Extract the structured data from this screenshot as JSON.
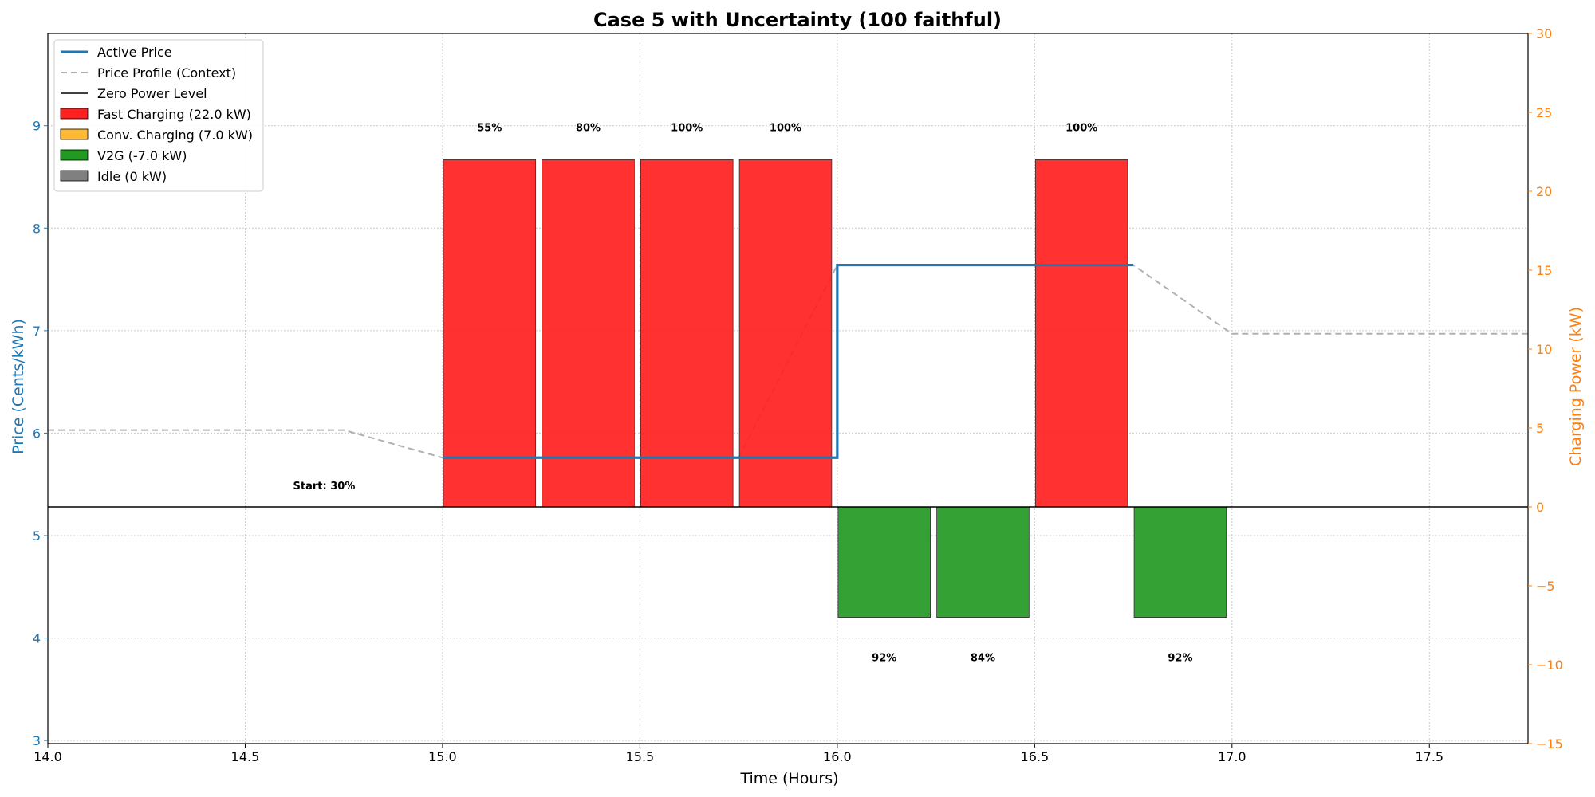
{
  "chart_data": {
    "type": "bar",
    "title": "Case 5 with Uncertainty (100 faithful)",
    "xlabel": "Time (Hours)",
    "ylabel_left": "Price (Cents/kWh)",
    "ylabel_right": "Charging Power (kW)",
    "xlim": [
      14.0,
      17.75
    ],
    "ylim_left": [
      2.97,
      9.9
    ],
    "ylim_right": [
      -15,
      30
    ],
    "xticks": [
      "14.0",
      "14.5",
      "15.0",
      "15.5",
      "16.0",
      "16.5",
      "17.0",
      "17.5"
    ],
    "xtick_values": [
      14.0,
      14.5,
      15.0,
      15.5,
      16.0,
      16.5,
      17.0,
      17.5
    ],
    "yticks_left": [
      3,
      4,
      5,
      6,
      7,
      8,
      9
    ],
    "yticks_right": [
      -15,
      -10,
      -5,
      0,
      5,
      10,
      15,
      20,
      25,
      30
    ],
    "grid": true,
    "legend_position": "top-left",
    "colors": {
      "active_price": "#1f77b4",
      "price_profile": "#b0b0b0",
      "fast": "#ff2020",
      "conv": "#ffb833",
      "v2g": "#229922",
      "idle": "#808080",
      "right_axis": "#ff7f0e"
    },
    "legend": [
      {
        "label": "Active Price",
        "kind": "line",
        "color": "#1f77b4"
      },
      {
        "label": "Price Profile (Context)",
        "kind": "dash",
        "color": "#b0b0b0"
      },
      {
        "label": "Zero Power Level",
        "kind": "line",
        "color": "#000000"
      },
      {
        "label": "Fast Charging (22.0 kW)",
        "kind": "patch",
        "color": "#ff2020"
      },
      {
        "label": "Conv. Charging (7.0 kW)",
        "kind": "patch",
        "color": "#ffb833"
      },
      {
        "label": "V2G (-7.0 kW)",
        "kind": "patch",
        "color": "#229922"
      },
      {
        "label": "Idle (0 kW)",
        "kind": "patch",
        "color": "#808080"
      }
    ],
    "active_price": {
      "x": [
        15.0,
        16.0,
        16.0,
        16.75
      ],
      "y": [
        5.76,
        5.76,
        7.64,
        7.64
      ]
    },
    "price_profile": {
      "x": [
        14.0,
        14.75,
        15.0,
        15.75,
        16.0,
        16.75,
        17.0,
        17.75
      ],
      "y": [
        6.03,
        6.03,
        5.76,
        5.76,
        7.64,
        7.64,
        6.97,
        6.97
      ]
    },
    "bars": [
      {
        "start": 15.0,
        "end": 15.25,
        "power": 22.0,
        "mode": "fast",
        "label": "55%"
      },
      {
        "start": 15.25,
        "end": 15.5,
        "power": 22.0,
        "mode": "fast",
        "label": "80%"
      },
      {
        "start": 15.5,
        "end": 15.75,
        "power": 22.0,
        "mode": "fast",
        "label": "100%"
      },
      {
        "start": 15.75,
        "end": 16.0,
        "power": 22.0,
        "mode": "fast",
        "label": "100%"
      },
      {
        "start": 16.0,
        "end": 16.25,
        "power": -7.0,
        "mode": "v2g",
        "label": "92%"
      },
      {
        "start": 16.25,
        "end": 16.5,
        "power": -7.0,
        "mode": "v2g",
        "label": "84%"
      },
      {
        "start": 16.5,
        "end": 16.75,
        "power": 22.0,
        "mode": "fast",
        "label": "100%"
      },
      {
        "start": 16.75,
        "end": 17.0,
        "power": -7.0,
        "mode": "v2g",
        "label": "92%"
      }
    ],
    "start_annotation": {
      "text": "Start: 30%",
      "x": 14.7
    }
  }
}
